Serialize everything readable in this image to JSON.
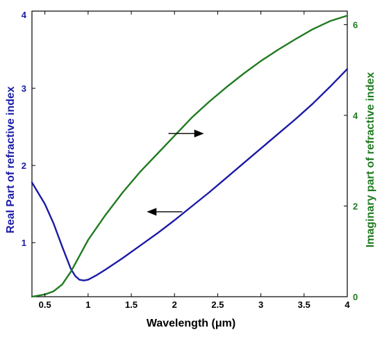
{
  "chart_data": {
    "type": "line",
    "xlabel": "Wavelength (μm)",
    "y1label": "Real Part of refractive index",
    "y2label": "Imaginary part of refractive index",
    "xlim": [
      0.35,
      4
    ],
    "y1lim": [
      0.3,
      4
    ],
    "y2lim": [
      0,
      6.3
    ],
    "x_ticks": [
      "0.5",
      "1",
      "1.5",
      "2",
      "2.5",
      "3",
      "3.5",
      "4"
    ],
    "y1_ticks": [
      "1",
      "2",
      "3",
      "4"
    ],
    "y2_ticks": [
      "0",
      "2",
      "4",
      "6"
    ],
    "grid": false,
    "colors": {
      "real": "#1a1aa6",
      "imag": "#1f7a1f",
      "axes": "#000000"
    },
    "series": [
      {
        "axis": "left",
        "color": "#1a1aa6",
        "x": [
          0.35,
          0.5,
          0.6,
          0.7,
          0.8,
          0.85,
          0.9,
          0.95,
          1.0,
          1.1,
          1.2,
          1.4,
          1.6,
          1.8,
          2.0,
          2.2,
          2.4,
          2.6,
          2.8,
          3.0,
          3.2,
          3.4,
          3.6,
          3.8,
          4.0
        ],
        "values": [
          1.78,
          1.5,
          1.25,
          0.95,
          0.66,
          0.57,
          0.52,
          0.51,
          0.52,
          0.58,
          0.65,
          0.8,
          0.96,
          1.12,
          1.29,
          1.47,
          1.65,
          1.84,
          2.03,
          2.22,
          2.41,
          2.6,
          2.8,
          3.02,
          3.25
        ]
      },
      {
        "axis": "right",
        "color": "#1f7a1f",
        "x": [
          0.35,
          0.5,
          0.6,
          0.7,
          0.8,
          0.9,
          1.0,
          1.2,
          1.4,
          1.6,
          1.8,
          2.0,
          2.2,
          2.4,
          2.6,
          2.8,
          3.0,
          3.2,
          3.4,
          3.6,
          3.8,
          4.0
        ],
        "values": [
          0.0,
          0.05,
          0.12,
          0.27,
          0.55,
          0.9,
          1.25,
          1.8,
          2.3,
          2.75,
          3.15,
          3.55,
          3.95,
          4.3,
          4.62,
          4.92,
          5.2,
          5.45,
          5.68,
          5.9,
          6.08,
          6.2
        ]
      }
    ],
    "annotations": [
      {
        "type": "arrow",
        "direction": "right",
        "x_from": 1.93,
        "x_to": 2.33,
        "axis": "right",
        "y": 3.6
      },
      {
        "type": "arrow",
        "direction": "left",
        "x_from": 2.09,
        "x_to": 1.69,
        "axis": "left",
        "y": 1.4
      }
    ]
  }
}
